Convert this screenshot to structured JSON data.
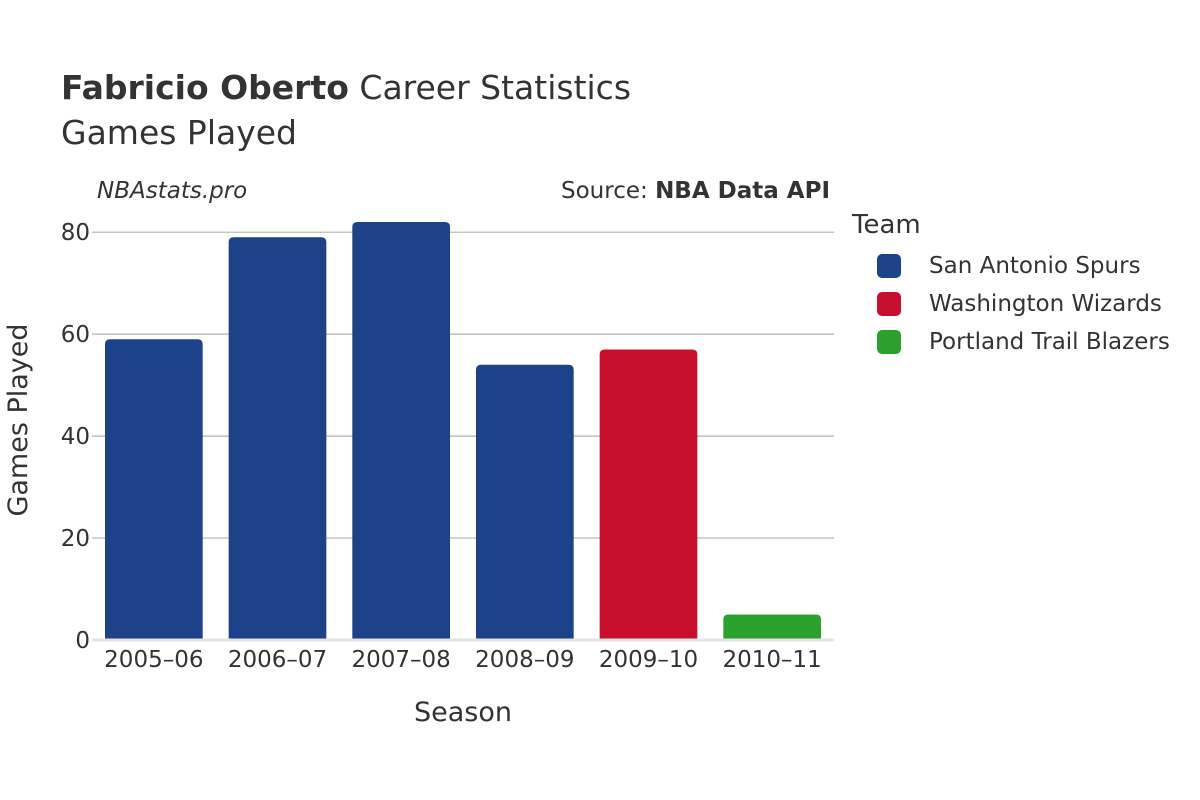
{
  "title": {
    "player": "Fabricio Oberto",
    "suffix": " Career Statistics",
    "subtitle": "Games Played"
  },
  "site": "NBAstats.pro",
  "source": {
    "prefix": "Source: ",
    "name": "NBA Data API"
  },
  "legend": {
    "title": "Team",
    "items": [
      {
        "label": "San Antonio Spurs",
        "color": "#1d428a"
      },
      {
        "label": "Washington Wizards",
        "color": "#c8102e"
      },
      {
        "label": "Portland Trail Blazers",
        "color": "#2ca02c"
      }
    ]
  },
  "chart_data": {
    "type": "bar",
    "categories": [
      "2005–06",
      "2006–07",
      "2007–08",
      "2008–09",
      "2009–10",
      "2010–11"
    ],
    "values": [
      59,
      79,
      82,
      54,
      57,
      5
    ],
    "teams": [
      "San Antonio Spurs",
      "San Antonio Spurs",
      "San Antonio Spurs",
      "San Antonio Spurs",
      "Washington Wizards",
      "Portland Trail Blazers"
    ],
    "xlabel": "Season",
    "ylabel": "Games Played",
    "ylim": [
      0,
      82
    ],
    "yticks": [
      0,
      20,
      40,
      60,
      80
    ],
    "grid": true,
    "legend_position": "right"
  }
}
